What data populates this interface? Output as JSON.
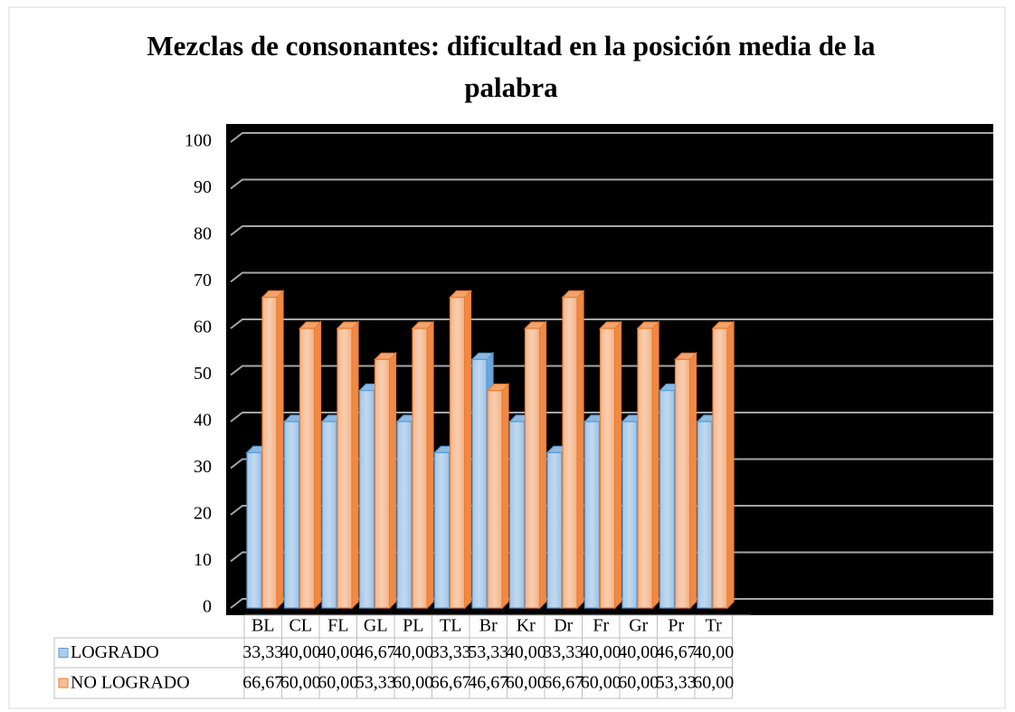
{
  "chart_data": {
    "type": "bar3d",
    "title": "Mezclas de consonantes: dificultad en la posición media de la palabra",
    "categories": [
      "BL",
      "CL",
      "FL",
      "GL",
      "PL",
      "TL",
      "Br",
      "Kr",
      "Dr",
      "Fr",
      "Gr",
      "Pr",
      "Tr"
    ],
    "series": [
      {
        "name": "LOGRADO",
        "color": "#5b9bd5",
        "values": [
          33.33,
          40.0,
          40.0,
          46.67,
          40.0,
          33.33,
          53.33,
          40.0,
          33.33,
          40.0,
          40.0,
          46.67,
          40.0
        ],
        "value_labels": [
          "33,33",
          "40,00",
          "40,00",
          "46,67",
          "40,00",
          "33,33",
          "53,33",
          "40,00",
          "33,33",
          "40,00",
          "40,00",
          "46,67",
          "40,00"
        ]
      },
      {
        "name": "NO LOGRADO",
        "color": "#ed7d31",
        "values": [
          66.67,
          60.0,
          60.0,
          53.33,
          60.0,
          66.67,
          46.67,
          60.0,
          66.67,
          60.0,
          60.0,
          53.33,
          60.0
        ],
        "value_labels": [
          "66,67",
          "60,00",
          "60,00",
          "53,33",
          "60,00",
          "66,67",
          "46,67",
          "60,00",
          "66,67",
          "60,00",
          "60,00",
          "53,33",
          "60,00"
        ]
      }
    ],
    "ylim": [
      0,
      100
    ],
    "yticks": [
      0,
      10,
      20,
      30,
      40,
      50,
      60,
      70,
      80,
      90,
      100
    ],
    "grid": true
  }
}
